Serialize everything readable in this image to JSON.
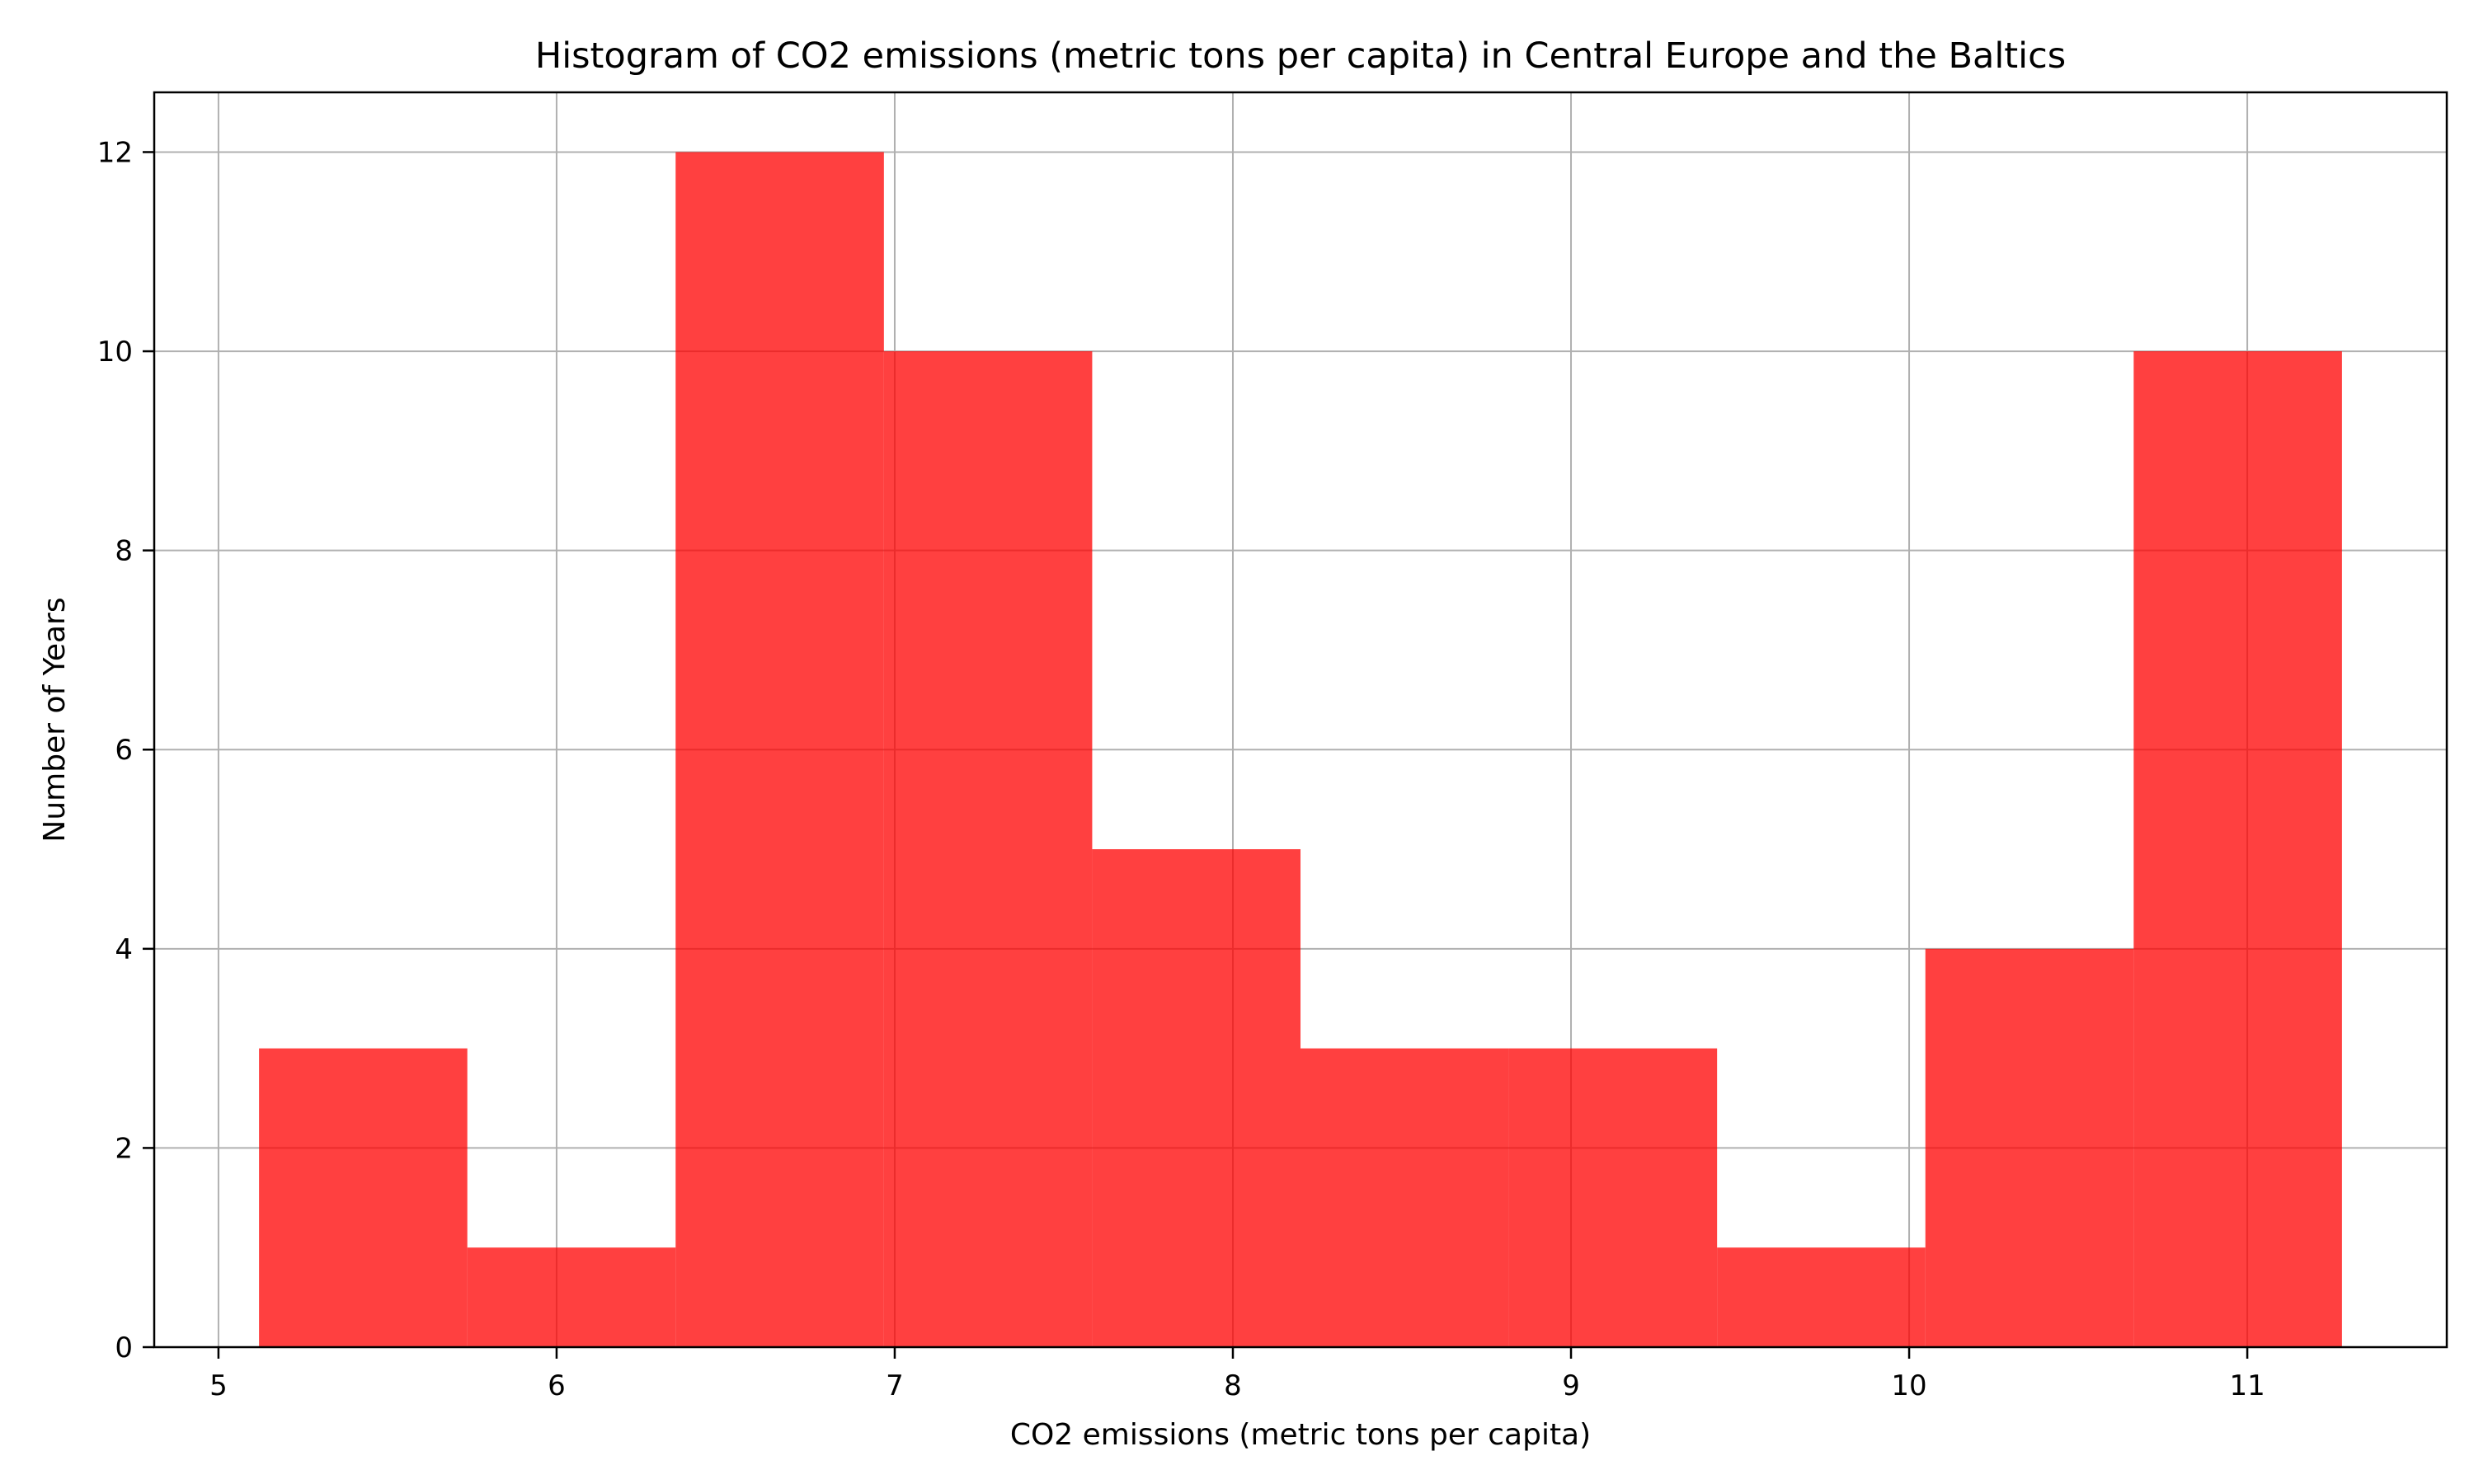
{
  "chart_data": {
    "type": "bar",
    "title": "Histogram of CO2 emissions (metric tons per capita) in Central Europe and the Baltics",
    "xlabel": "CO2 emissions (metric tons per capita)",
    "ylabel": "Number of Years",
    "bin_edges": [
      5.12,
      5.736,
      6.352,
      6.968,
      7.584,
      8.2,
      8.816,
      9.432,
      10.048,
      10.664,
      11.28
    ],
    "values": [
      3,
      1,
      12,
      10,
      5,
      3,
      3,
      1,
      4,
      10
    ],
    "xlim": [
      4.81,
      11.59
    ],
    "ylim": [
      0,
      12.6
    ],
    "x_ticks": [
      5,
      6,
      7,
      8,
      9,
      10,
      11
    ],
    "y_ticks": [
      0,
      2,
      4,
      6,
      8,
      10,
      12
    ],
    "grid": true,
    "bar_color": "#ff0000",
    "bar_alpha": 0.75,
    "grid_color": "#b0b0b0"
  }
}
